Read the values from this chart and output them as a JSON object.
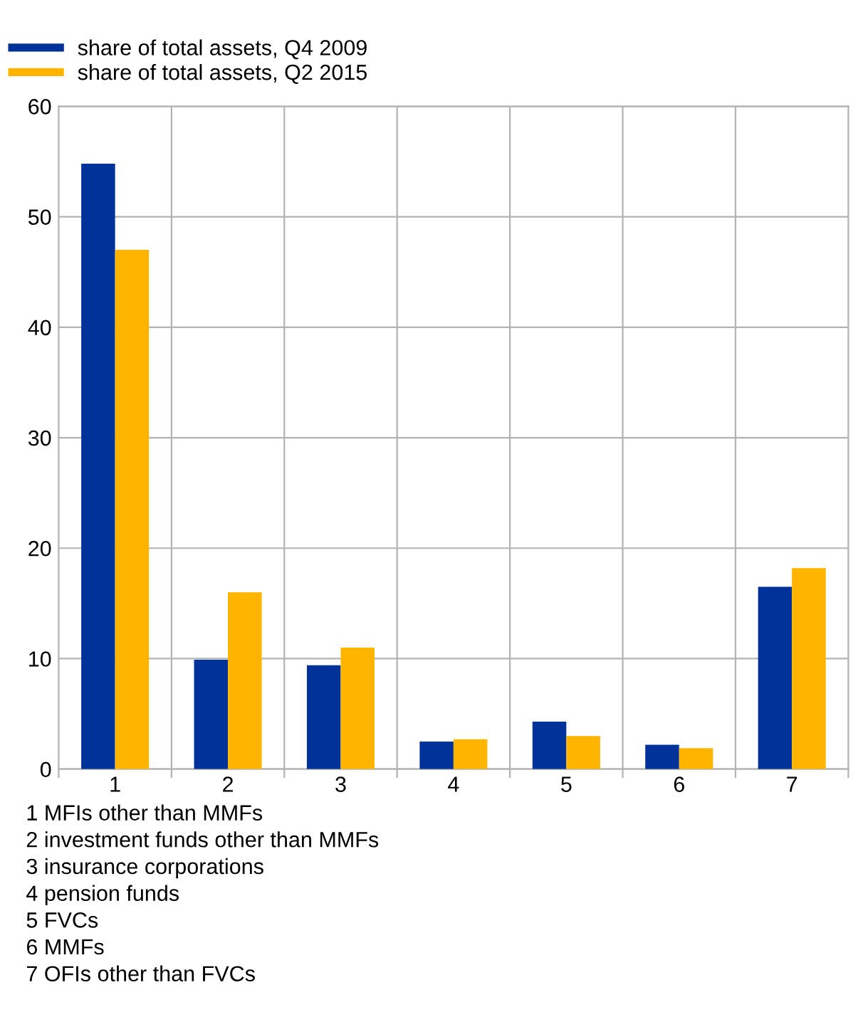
{
  "chart_data": {
    "type": "bar",
    "categories": [
      "1",
      "2",
      "3",
      "4",
      "5",
      "6",
      "7"
    ],
    "series": [
      {
        "name": "share of total assets, Q4 2009",
        "color": "#003299",
        "values": [
          54.8,
          9.9,
          9.4,
          2.5,
          4.3,
          2.2,
          16.5
        ]
      },
      {
        "name": "share of total assets, Q2 2015",
        "color": "#ffb400",
        "values": [
          47.0,
          16.0,
          11.0,
          2.7,
          3.0,
          1.9,
          18.2
        ]
      }
    ],
    "ylim": [
      0,
      60
    ],
    "yticks": [
      0,
      10,
      20,
      30,
      40,
      50,
      60
    ],
    "grid": true,
    "legend": "top left",
    "annotations": [
      "1 MFIs other than MMFs",
      "2 investment funds other than MMFs",
      "3 insurance corporations",
      "4 pension funds",
      "5 FVCs",
      "6 MMFs",
      "7 OFIs other than FVCs"
    ]
  }
}
